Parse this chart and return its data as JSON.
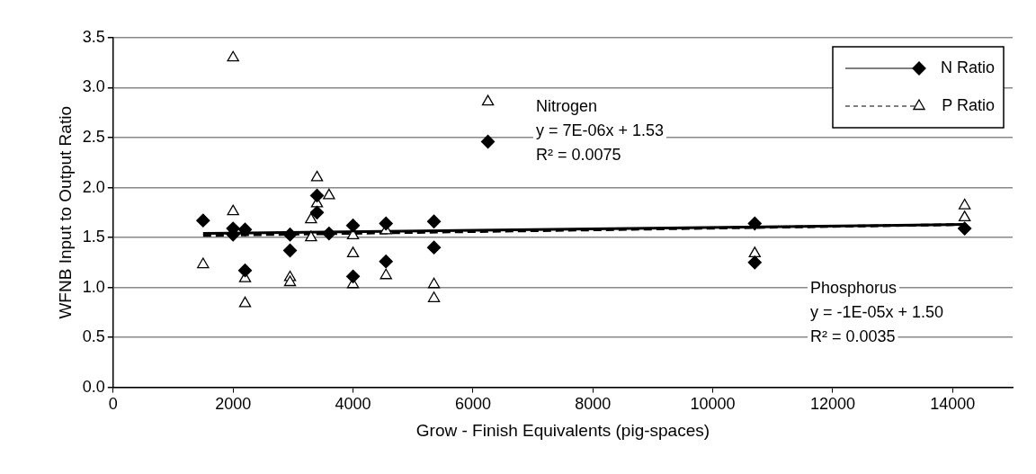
{
  "chart_data": {
    "type": "scatter",
    "xlabel": "Grow - Finish Equivalents (pig-spaces)",
    "ylabel": "WFNB Input to Output Ratio",
    "xlim": [
      0,
      15000
    ],
    "xticks": [
      0,
      2000,
      4000,
      6000,
      8000,
      10000,
      12000,
      14000
    ],
    "ylim": [
      0,
      3.5
    ],
    "yticks": [
      {
        "value": 0,
        "label": "0.0"
      },
      {
        "value": 0.5,
        "label": "0.5"
      },
      {
        "value": 1,
        "label": "1.0"
      },
      {
        "value": 1.5,
        "label": "1.5"
      },
      {
        "value": 2,
        "label": "2.0"
      },
      {
        "value": 2.5,
        "label": "2.5"
      },
      {
        "value": 3,
        "label": "3.0"
      },
      {
        "value": 3.5,
        "label": "3.5"
      }
    ],
    "grid": "y",
    "legend": "top right",
    "series": [
      {
        "name": "N Ratio",
        "color": "#000000",
        "marker": "diamond",
        "x": [
          1500,
          2000,
          2000,
          2200,
          2200,
          2950,
          2950,
          3400,
          3400,
          3600,
          4000,
          4000,
          4550,
          4550,
          5350,
          5350,
          6250,
          10700,
          10700,
          14200
        ],
        "values": [
          1.67,
          1.59,
          1.53,
          1.58,
          1.17,
          1.53,
          1.37,
          1.92,
          1.75,
          1.54,
          1.62,
          1.11,
          1.64,
          1.26,
          1.66,
          1.4,
          2.46,
          1.64,
          1.25,
          1.59
        ]
      },
      {
        "name": "P Ratio",
        "color": "#000000",
        "marker": "triangle",
        "x": [
          1500,
          2000,
          2000,
          2200,
          2200,
          2950,
          2950,
          3300,
          3300,
          3400,
          3400,
          3600,
          4000,
          4000,
          4000,
          4550,
          4550,
          5350,
          5350,
          6250,
          10700,
          14200,
          14200
        ],
        "values": [
          1.23,
          3.3,
          1.76,
          1.09,
          0.84,
          1.1,
          1.05,
          1.68,
          1.5,
          2.1,
          1.84,
          1.92,
          1.52,
          1.34,
          1.03,
          1.57,
          1.12,
          1.03,
          0.89,
          2.86,
          1.34,
          1.82,
          1.7
        ]
      },
      {
        "type": "line",
        "color": "#000000",
        "marker": "none",
        "line_style": "solid",
        "x": [
          1500,
          14200
        ],
        "values": [
          1.54,
          1.63
        ]
      },
      {
        "type": "line",
        "color": "#000000",
        "marker": "none",
        "line_style": "dashed",
        "x": [
          1500,
          14200
        ],
        "values": [
          1.52,
          1.63
        ]
      }
    ],
    "annotations": [
      "Nitrogen\ny = 7E-06x + 1.53\nR² = 0.0075",
      "Phosphorus\ny = -1E-05x + 1.50\nR² = 0.0035"
    ]
  }
}
